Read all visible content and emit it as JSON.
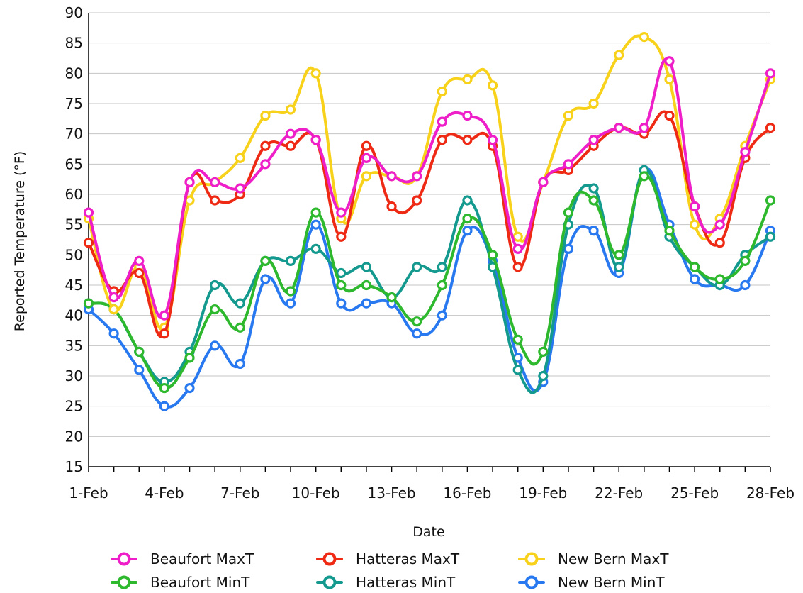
{
  "chart_data": {
    "type": "line",
    "title": "",
    "xlabel": "Date",
    "ylabel": "Reported Temperature (°F)",
    "ylim": [
      15,
      90
    ],
    "yticks": [
      15,
      20,
      25,
      30,
      35,
      40,
      45,
      50,
      55,
      60,
      65,
      70,
      75,
      80,
      85,
      90
    ],
    "grid": "horizontal",
    "legend": "bottom",
    "categories": [
      "1-Feb",
      "2-Feb",
      "3-Feb",
      "4-Feb",
      "5-Feb",
      "6-Feb",
      "7-Feb",
      "8-Feb",
      "9-Feb",
      "10-Feb",
      "11-Feb",
      "12-Feb",
      "13-Feb",
      "14-Feb",
      "15-Feb",
      "16-Feb",
      "17-Feb",
      "18-Feb",
      "19-Feb",
      "20-Feb",
      "21-Feb",
      "22-Feb",
      "23-Feb",
      "24-Feb",
      "25-Feb",
      "26-Feb",
      "27-Feb",
      "28-Feb"
    ],
    "xtick_labels": [
      "1-Feb",
      "4-Feb",
      "7-Feb",
      "10-Feb",
      "13-Feb",
      "16-Feb",
      "19-Feb",
      "22-Feb",
      "25-Feb",
      "28-Feb"
    ],
    "series": [
      {
        "name": "Beaufort MaxT",
        "color": "#ee1ec8",
        "values": [
          57,
          43,
          49,
          40,
          62,
          62,
          61,
          65,
          70,
          69,
          57,
          66,
          63,
          63,
          72,
          73,
          69,
          51,
          62,
          65,
          69,
          71,
          71,
          82,
          58,
          55,
          67,
          80
        ]
      },
      {
        "name": "Hatteras MaxT",
        "color": "#ee2a14",
        "values": [
          52,
          44,
          47,
          37,
          62,
          59,
          60,
          68,
          68,
          69,
          53,
          68,
          58,
          59,
          69,
          69,
          68,
          48,
          62,
          64,
          68,
          71,
          70,
          73,
          58,
          52,
          66,
          71
        ]
      },
      {
        "name": "New Bern MaxT",
        "color": "#f8d21a",
        "values": [
          56,
          41,
          48,
          38,
          59,
          62,
          66,
          73,
          74,
          80,
          56,
          63,
          63,
          63,
          77,
          79,
          78,
          53,
          62,
          73,
          75,
          83,
          86,
          79,
          55,
          56,
          68,
          79
        ]
      },
      {
        "name": "Beaufort MinT",
        "color": "#2db82d",
        "values": [
          42,
          41,
          34,
          28,
          33,
          41,
          38,
          49,
          44,
          57,
          45,
          45,
          43,
          39,
          45,
          56,
          50,
          36,
          34,
          57,
          59,
          50,
          63,
          54,
          48,
          46,
          49,
          59
        ]
      },
      {
        "name": "Hatteras MinT",
        "color": "#14998f",
        "values": [
          42,
          41,
          34,
          29,
          34,
          45,
          42,
          49,
          49,
          51,
          47,
          48,
          43,
          48,
          48,
          59,
          48,
          31,
          30,
          55,
          61,
          48,
          64,
          53,
          48,
          45,
          50,
          53
        ]
      },
      {
        "name": "New Bern MinT",
        "color": "#2878f0",
        "values": [
          41,
          37,
          31,
          25,
          28,
          35,
          32,
          46,
          42,
          55,
          42,
          42,
          42,
          37,
          40,
          54,
          49,
          33,
          29,
          51,
          54,
          47,
          64,
          55,
          46,
          45,
          45,
          54
        ]
      }
    ]
  }
}
